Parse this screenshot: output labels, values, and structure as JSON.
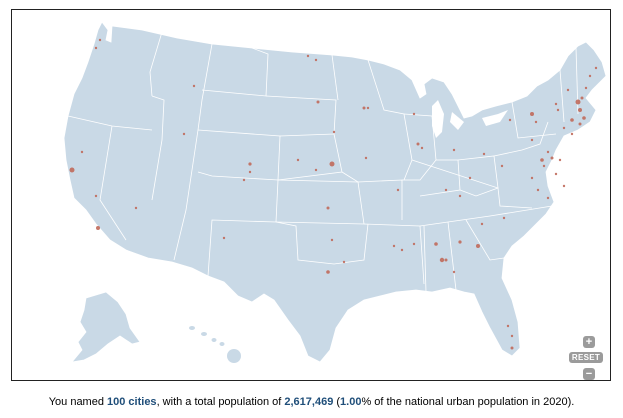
{
  "summary": {
    "prefix": "You named ",
    "cities_named": "100 cities",
    "mid1": ", with a total population of ",
    "population": "2,617,469",
    "mid2": " (",
    "percent": "1.00",
    "suffix": "% of the national urban population in 2020)."
  },
  "controls": {
    "zoom_in": "+",
    "reset": "RESET",
    "zoom_out": "−"
  },
  "colors": {
    "land": "#c9d9e6",
    "borders": "#ffffff",
    "city_marker": "#c0695a",
    "highlight_text": "#1f4e79",
    "button": "#9b9b9b"
  }
}
